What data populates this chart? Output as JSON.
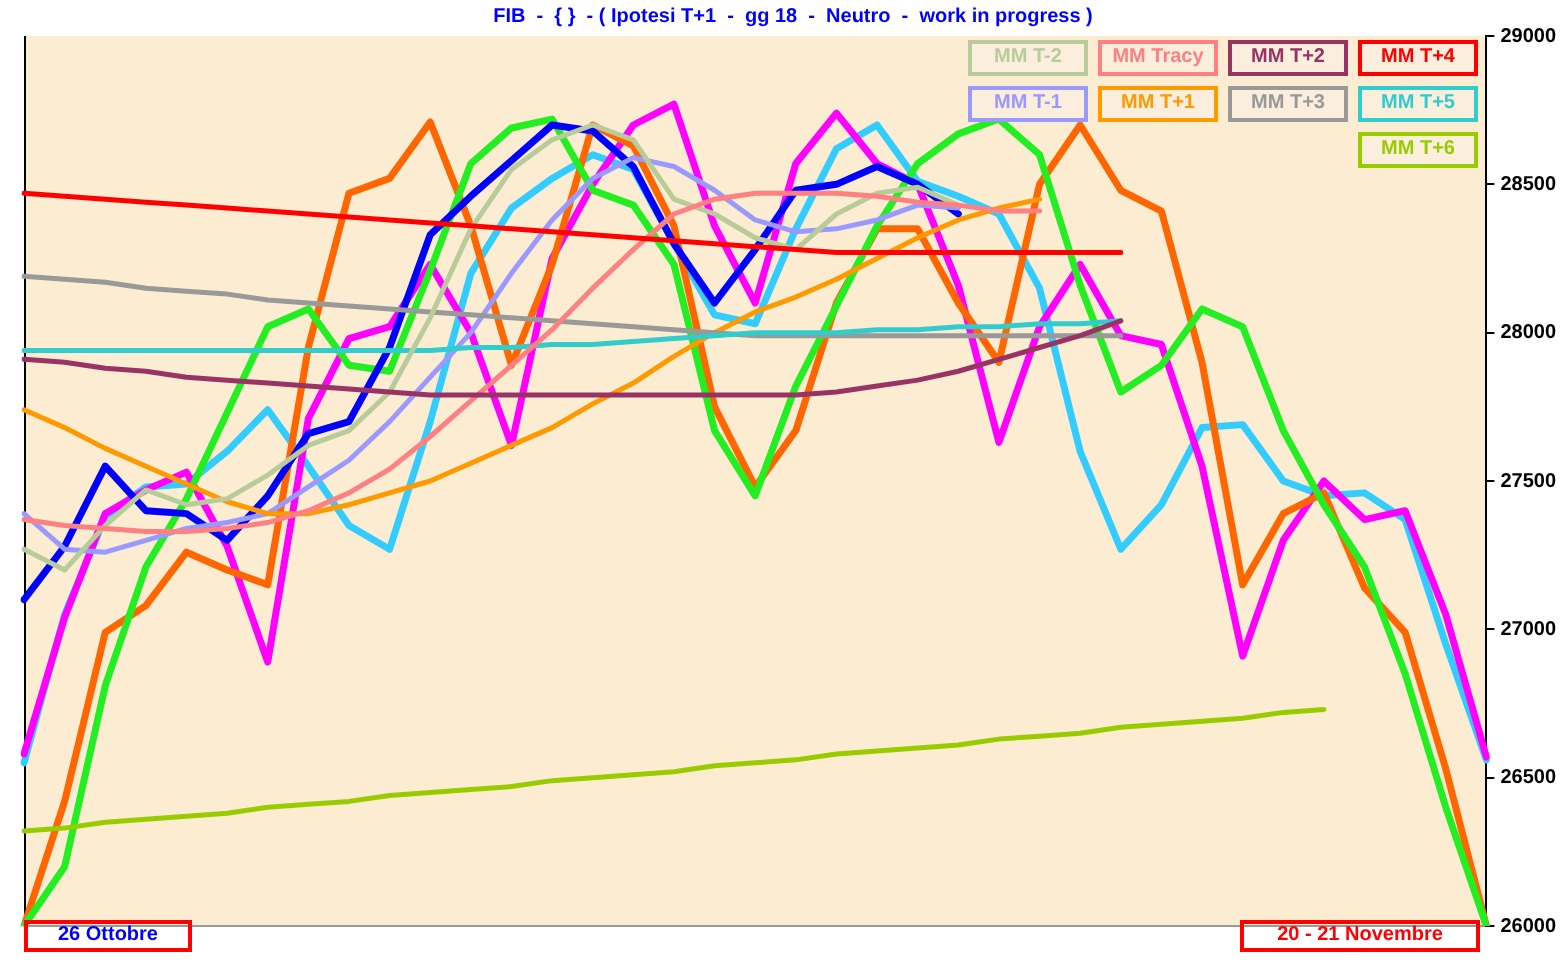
{
  "chart_data": {
    "type": "line",
    "title": "FIB  -  { }  - ( Ipotesi T+1  -  gg 18  -  Neutro  -  work in progress )",
    "categories": [
      null,
      null,
      null,
      null,
      null,
      null,
      null,
      null,
      null,
      null,
      null,
      null,
      null,
      null,
      null,
      null,
      null,
      null,
      null,
      null,
      null,
      null,
      null,
      null,
      null,
      null,
      null,
      null,
      null,
      null,
      null,
      null,
      null,
      null,
      null,
      null,
      null
    ],
    "ylim": [
      26000,
      29000
    ],
    "yticks": [
      26000,
      26500,
      27000,
      27500,
      28000,
      28500,
      29000
    ],
    "tick_labels": "y",
    "legend": "top right",
    "annotations": [
      "26  Ottobre",
      "20 - 21  Novembre"
    ],
    "series": [
      {
        "name": "MM  T+4",
        "color": "#ff0000",
        "values": [
          28470,
          28460,
          28450,
          28440,
          28430,
          28420,
          28410,
          28400,
          28390,
          28380,
          28370,
          28360,
          28350,
          28340,
          28330,
          28320,
          28310,
          28300,
          28290,
          28280,
          28270,
          28270,
          28270,
          28270,
          28270,
          28270,
          28270,
          28270,
          null,
          null,
          null,
          null,
          null,
          null,
          null,
          null,
          null
        ]
      },
      {
        "name": "MM  T+2",
        "color": "#993366",
        "values": [
          27910,
          27900,
          27880,
          27870,
          27850,
          27840,
          27830,
          27820,
          27810,
          27800,
          27790,
          27790,
          27790,
          27790,
          27790,
          27790,
          27790,
          27790,
          27790,
          27790,
          27800,
          27820,
          27840,
          27870,
          27910,
          27950,
          27990,
          28040,
          null,
          null,
          null,
          null,
          null,
          null,
          null,
          null,
          null
        ]
      },
      {
        "name": "MM  Tracy",
        "color": "#ff8080",
        "values": [
          27370,
          27350,
          27340,
          27330,
          27330,
          27340,
          27360,
          27400,
          27460,
          27540,
          27650,
          27770,
          27890,
          28010,
          28150,
          28280,
          28400,
          28450,
          28470,
          28470,
          28470,
          28460,
          28440,
          28430,
          28410,
          28410,
          null,
          null,
          null,
          null,
          null,
          null,
          null,
          null,
          null,
          null,
          null
        ]
      },
      {
        "name": "MM  T-2",
        "color": "#b8cc99",
        "values": [
          27270,
          27200,
          27350,
          27470,
          27420,
          27440,
          27520,
          27620,
          27670,
          27800,
          28050,
          28350,
          28550,
          28650,
          28700,
          28650,
          28450,
          28400,
          28320,
          28280,
          28400,
          28470,
          28490,
          28430,
          null,
          null,
          null,
          null,
          null,
          null,
          null,
          null,
          null,
          null,
          null,
          null,
          null
        ]
      },
      {
        "name": "MM  T+5",
        "color": "#33cccc",
        "values": [
          27940,
          27940,
          27940,
          27940,
          27940,
          27940,
          27940,
          27940,
          27940,
          27940,
          27940,
          27950,
          27950,
          27960,
          27960,
          27970,
          27980,
          27990,
          28000,
          28000,
          28000,
          28010,
          28010,
          28020,
          28020,
          28030,
          28030,
          28040,
          null,
          null,
          null,
          null,
          null,
          null,
          null,
          null,
          null
        ]
      },
      {
        "name": "MM  T+3",
        "color": "#999999",
        "values": [
          28190,
          28180,
          28170,
          28150,
          28140,
          28130,
          28110,
          28100,
          28090,
          28080,
          28070,
          28060,
          28050,
          28040,
          28030,
          28020,
          28010,
          28000,
          27990,
          27990,
          27990,
          27990,
          27990,
          27990,
          27990,
          27990,
          27990,
          27990,
          null,
          null,
          null,
          null,
          null,
          null,
          null,
          null,
          null
        ]
      },
      {
        "name": "MM  T+1",
        "color": "#ff9900",
        "values": [
          27740,
          27680,
          27610,
          27550,
          27490,
          27430,
          27390,
          27390,
          27420,
          27460,
          27500,
          27560,
          27620,
          27680,
          27760,
          27830,
          27920,
          28000,
          28070,
          28120,
          28180,
          28250,
          28320,
          28380,
          28420,
          28450,
          null,
          null,
          null,
          null,
          null,
          null,
          null,
          null,
          null,
          null,
          null
        ]
      },
      {
        "name": "MM  T-1",
        "color": "#9999ff",
        "values": [
          27390,
          27270,
          27260,
          27300,
          27340,
          27360,
          27390,
          27480,
          27570,
          27700,
          27850,
          28000,
          28200,
          28380,
          28520,
          28590,
          28560,
          28480,
          28380,
          28340,
          28350,
          28380,
          28430,
          28420,
          null,
          null,
          null,
          null,
          null,
          null,
          null,
          null,
          null,
          null,
          null,
          null,
          null
        ]
      },
      {
        "name": "MM  T+6",
        "color": "#99cc00",
        "values": [
          26320,
          26330,
          26350,
          26360,
          26370,
          26380,
          26400,
          26410,
          26420,
          26440,
          26450,
          26460,
          26470,
          26490,
          26500,
          26510,
          26520,
          26540,
          26550,
          26560,
          26580,
          26590,
          26600,
          26610,
          26630,
          26640,
          26650,
          26670,
          26680,
          26690,
          26700,
          26720,
          26730,
          null,
          null,
          null,
          null
        ]
      },
      {
        "color": "#0000ff",
        "values": [
          27100,
          27280,
          27550,
          27400,
          27390,
          27300,
          27450,
          27660,
          27700,
          27950,
          28330,
          28460,
          28580,
          28700,
          28680,
          28560,
          28300,
          28100,
          28280,
          28480,
          28500,
          28560,
          28500,
          28400,
          null,
          null,
          null,
          null,
          null,
          null,
          null,
          null,
          null,
          null,
          null,
          null,
          null
        ]
      },
      {
        "color": "#22ee22",
        "values": [
          26000,
          26200,
          26810,
          27210,
          27440,
          27730,
          28020,
          28080,
          27890,
          27870,
          28210,
          28570,
          28690,
          28720,
          28480,
          28430,
          28230,
          27670,
          27450,
          27820,
          28090,
          28360,
          28570,
          28670,
          28720,
          28600,
          28160,
          27800,
          27890,
          28080,
          28020,
          27670,
          27420,
          27210,
          26850,
          26400,
          26000
        ]
      },
      {
        "color": "#ff6600",
        "values": [
          26000,
          26420,
          26990,
          27080,
          27260,
          27200,
          27150,
          27950,
          28470,
          28520,
          28710,
          28360,
          27890,
          28230,
          28700,
          28630,
          28360,
          27750,
          27480,
          27670,
          28100,
          28350,
          28350,
          28100,
          27900,
          28500,
          28700,
          28480,
          28410,
          27900,
          27150,
          27390,
          27460,
          27140,
          26990,
          26530,
          26000
        ]
      },
      {
        "color": "#ff00ff",
        "values": [
          26580,
          27040,
          27390,
          27470,
          27530,
          27280,
          26890,
          27710,
          27980,
          28020,
          28230,
          28000,
          27620,
          28250,
          28500,
          28700,
          28770,
          28360,
          28100,
          28570,
          28740,
          28570,
          28500,
          28160,
          27630,
          28020,
          28230,
          27990,
          27960,
          27550,
          26910,
          27300,
          27500,
          27370,
          27400,
          27050,
          26570
        ]
      },
      {
        "color": "#33ccff",
        "values": [
          26550,
          27050,
          27380,
          27480,
          27490,
          27600,
          27740,
          27550,
          27350,
          27270,
          27700,
          28200,
          28420,
          28520,
          28600,
          28550,
          28300,
          28060,
          28030,
          28350,
          28620,
          28700,
          28510,
          28460,
          28400,
          28150,
          27600,
          27270,
          27420,
          27680,
          27690,
          27500,
          27450,
          27460,
          27370,
          26950,
          26560
        ]
      }
    ]
  }
}
